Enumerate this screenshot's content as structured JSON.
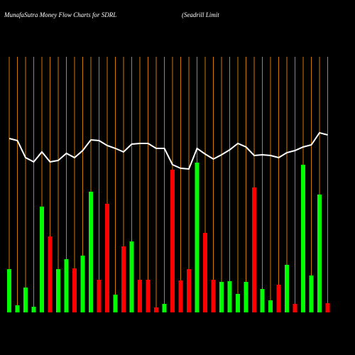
{
  "chart_data": {
    "type": "bar-line",
    "title": "MunafaSutra  Money Flow  Charts for SDRL",
    "subtitle": "(Seadrill Limit",
    "categories": [
      null,
      null,
      null,
      null,
      null,
      null,
      null,
      null,
      null,
      null,
      null,
      null,
      null,
      null,
      null,
      null,
      null,
      null,
      null,
      null,
      null,
      null,
      null,
      null,
      null,
      null,
      null,
      null,
      null,
      null,
      null,
      null,
      null,
      null,
      null,
      null,
      null,
      null,
      null,
      null
    ],
    "series": [
      {
        "type": "bar",
        "values": [
          61,
          10,
          35,
          8,
          149,
          107,
          61,
          75,
          62,
          80,
          170,
          46,
          153,
          25,
          93,
          100,
          46,
          46,
          7,
          12,
          201,
          45,
          61,
          211,
          112,
          46,
          43,
          44,
          26,
          43,
          176,
          33,
          17,
          39,
          67,
          12,
          208,
          52,
          166,
          13
        ],
        "colors": [
          "#00ff00",
          "#00ff00",
          "#00ff00",
          "#00ff00",
          "#00ff00",
          "#ff0000",
          "#00ff00",
          "#00ff00",
          "#ff0000",
          "#00ff00",
          "#00ff00",
          "#ff0000",
          "#ff0000",
          "#00ff00",
          "#ff0000",
          "#00ff00",
          "#ff0000",
          "#ff0000",
          "#ff0000",
          "#00ff00",
          "#ff0000",
          "#ff0000",
          "#ff0000",
          "#00ff00",
          "#ff0000",
          "#ff0000",
          "#00ff00",
          "#00ff00",
          "#00ff00",
          "#00ff00",
          "#ff0000",
          "#00ff00",
          "#00ff00",
          "#ff0000",
          "#00ff00",
          "#ff0000",
          "#00ff00",
          "#00ff00",
          "#00ff00",
          "#ff0000"
        ]
      },
      {
        "type": "line",
        "color": "#ffffff",
        "values": [
          245,
          242,
          218,
          212,
          226,
          212,
          214,
          224,
          218,
          228,
          243,
          242,
          235,
          231,
          226,
          237,
          238,
          238,
          231,
          231,
          208,
          203,
          202,
          231,
          223,
          216,
          222,
          229,
          238,
          233,
          221,
          222,
          221,
          218,
          225,
          228,
          233,
          236,
          253,
          250
        ]
      }
    ],
    "ylim": [
      0,
      360
    ],
    "grid": true,
    "grid_color": "#cc7a00"
  }
}
